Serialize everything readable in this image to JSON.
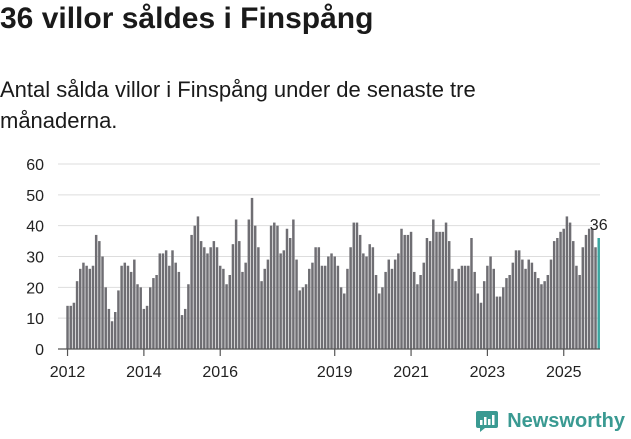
{
  "title": "36 villor såldes i Finspång",
  "subtitle": "Antal sålda villor i Finspång under de senaste tre månaderna.",
  "brand": {
    "name": "Newsworthy"
  },
  "colors": {
    "bar": "#6f6e73",
    "highlight": "#3aa6a0",
    "axis": "#555555",
    "grid": "#dddddd",
    "brand": "#3a9a92"
  },
  "chart_data": {
    "type": "bar",
    "title": "36 villor såldes i Finspång",
    "xlabel": "",
    "ylabel": "",
    "ylim": [
      0,
      60
    ],
    "yticks": [
      0,
      10,
      20,
      30,
      40,
      50,
      60
    ],
    "xlim": [
      2011.75,
      2025.95
    ],
    "xticks": [
      2012,
      2014,
      2016,
      2019,
      2021,
      2023,
      2025
    ],
    "bar_width_years": 0.065,
    "start": 2012.0,
    "step": 0.08333,
    "values": [
      14,
      14,
      15,
      22,
      26,
      28,
      27,
      26,
      27,
      37,
      35,
      30,
      20,
      13,
      9,
      12,
      19,
      27,
      28,
      27,
      25,
      29,
      21,
      20,
      13,
      14,
      20,
      23,
      24,
      31,
      31,
      32,
      27,
      32,
      28,
      25,
      11,
      13,
      21,
      37,
      40,
      43,
      35,
      33,
      31,
      33,
      35,
      33,
      27,
      26,
      21,
      24,
      34,
      42,
      35,
      25,
      28,
      42,
      49,
      40,
      33,
      22,
      26,
      29,
      40,
      41,
      40,
      31,
      32,
      39,
      36,
      42,
      29,
      19,
      20,
      21,
      26,
      28,
      33,
      33,
      27,
      27,
      30,
      31,
      30,
      27,
      20,
      18,
      26,
      33,
      41,
      41,
      37,
      31,
      30,
      34,
      33,
      24,
      18,
      20,
      25,
      29,
      26,
      29,
      31,
      39,
      37,
      37,
      38,
      25,
      21,
      24,
      28,
      36,
      35,
      42,
      38,
      38,
      38,
      41,
      35,
      26,
      22,
      26,
      27,
      27,
      27,
      36,
      25,
      18,
      15,
      22,
      27,
      30,
      26,
      17,
      17,
      20,
      23,
      24,
      28,
      32,
      32,
      29,
      26,
      29,
      28,
      25,
      23,
      21,
      22,
      24,
      29,
      35,
      36,
      38,
      39,
      43,
      41,
      35,
      27,
      24,
      33,
      37,
      39,
      39,
      33,
      36
    ],
    "annotation": {
      "label": "36",
      "value": 36
    }
  }
}
